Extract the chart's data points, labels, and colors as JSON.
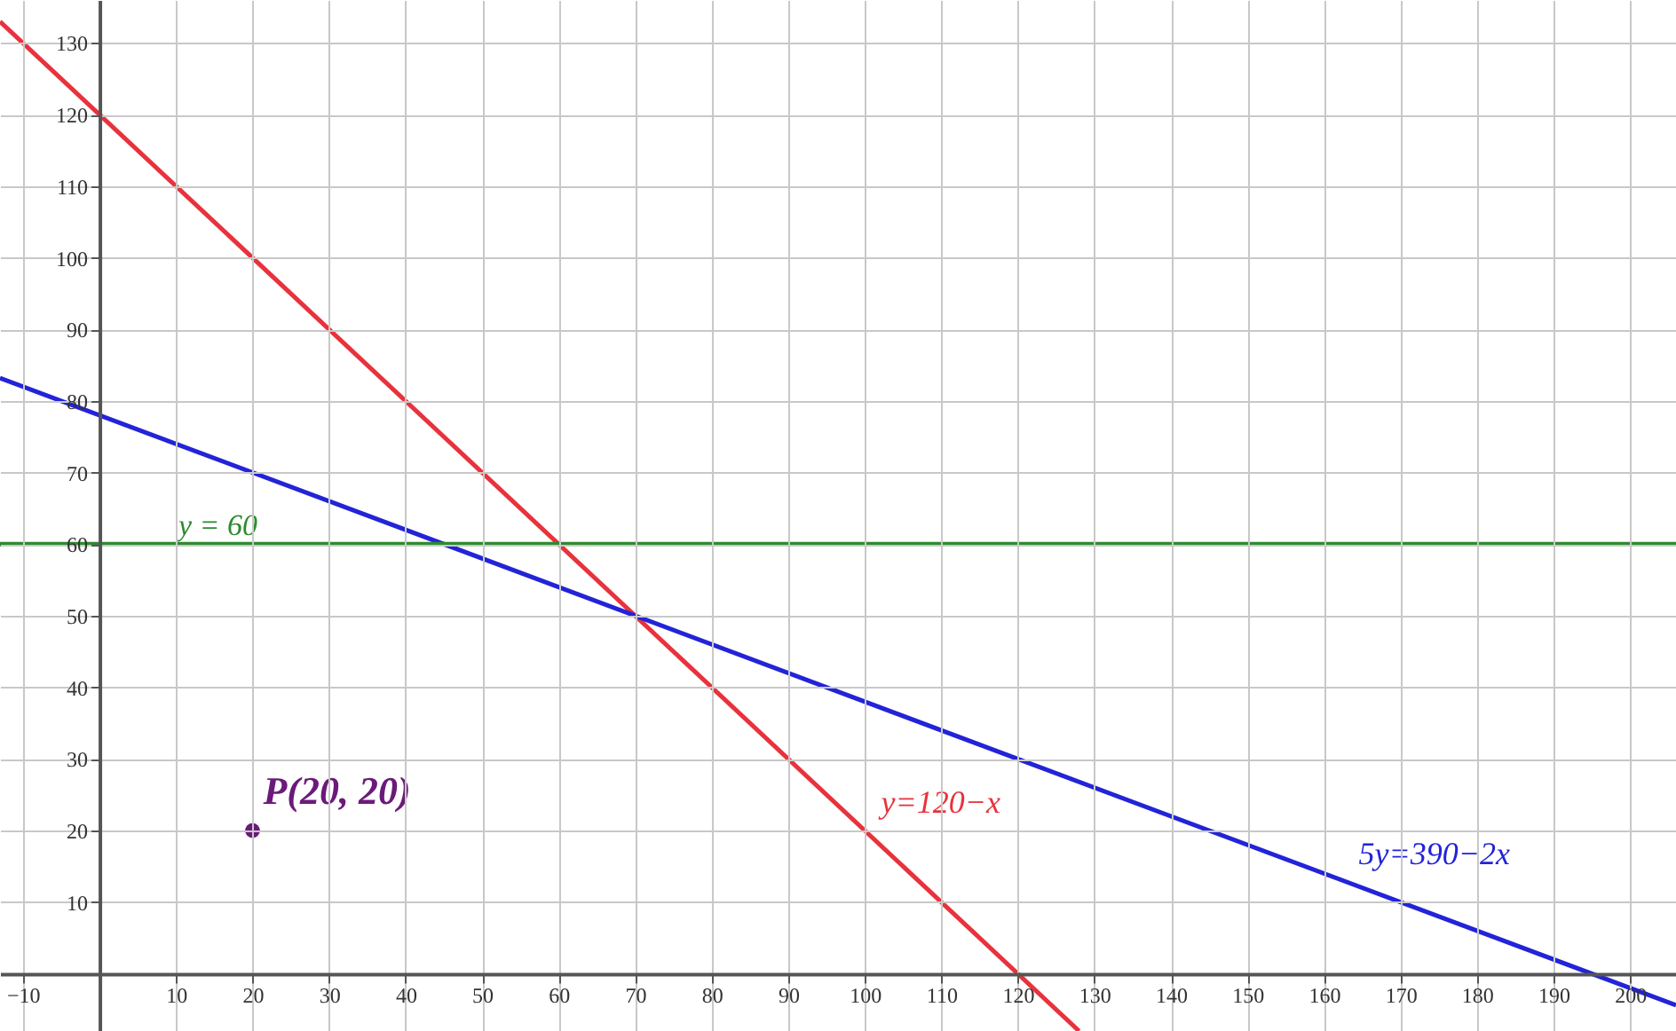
{
  "chart_data": {
    "type": "line",
    "xlim": [
      -13,
      206
    ],
    "ylim": [
      -8,
      136
    ],
    "xticks": [
      -10,
      10,
      20,
      30,
      40,
      50,
      60,
      70,
      80,
      90,
      100,
      110,
      120,
      130,
      140,
      150,
      160,
      170,
      180,
      190,
      200
    ],
    "yticks": [
      10,
      20,
      30,
      40,
      50,
      60,
      70,
      80,
      90,
      100,
      110,
      120,
      130
    ],
    "grid": true,
    "series": [
      {
        "name": "y=120−x",
        "color": "#e8323c",
        "x": [
          -13,
          128
        ],
        "values": [
          133,
          -8
        ]
      },
      {
        "name": "5y=390−2x",
        "color": "#2323d8",
        "x": [
          -13,
          206
        ],
        "values": [
          83.2,
          -4.4
        ]
      },
      {
        "type": "scatter",
        "name": "P(20, 20)",
        "color": "#6b1a7a",
        "x": [
          20
        ],
        "values": [
          20
        ],
        "marker": "circle"
      }
    ],
    "ref_lines": [
      {
        "axis": "y",
        "value": 60,
        "label": "y = 60",
        "color": "#2e8b2e"
      }
    ]
  }
}
